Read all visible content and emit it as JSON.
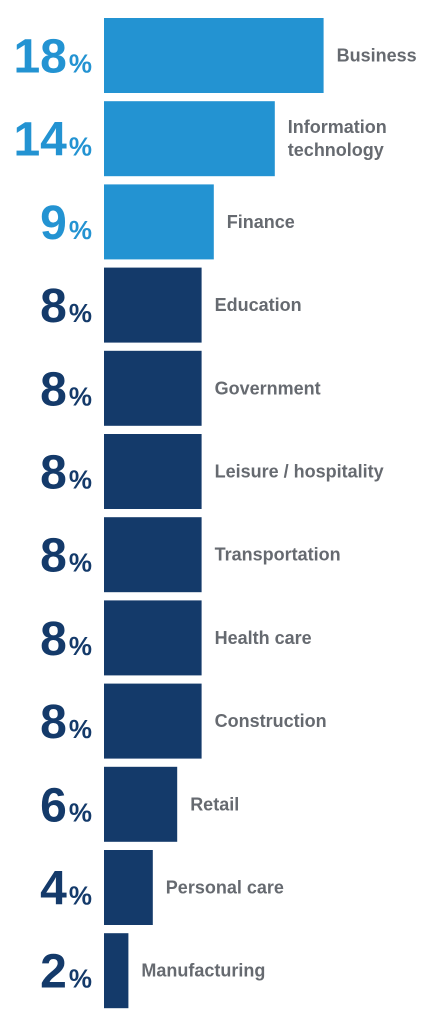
{
  "chart_data": {
    "type": "bar",
    "orientation": "horizontal",
    "categories": [
      "Business",
      "Information technology",
      "Finance",
      "Education",
      "Government",
      "Leisure / hospitality",
      "Transportation",
      "Health care",
      "Construction",
      "Retail",
      "Personal care",
      "Manufacturing"
    ],
    "category_lines": [
      [
        "Business"
      ],
      [
        "Information",
        "technology"
      ],
      [
        "Finance"
      ],
      [
        "Education"
      ],
      [
        "Government"
      ],
      [
        "Leisure / hospitality"
      ],
      [
        "Transportation"
      ],
      [
        "Health care"
      ],
      [
        "Construction"
      ],
      [
        "Retail"
      ],
      [
        "Personal care"
      ],
      [
        "Manufacturing"
      ]
    ],
    "values": [
      18,
      14,
      9,
      8,
      8,
      8,
      8,
      8,
      8,
      6,
      4,
      2
    ],
    "value_suffix": "%",
    "highlight_top": 3,
    "colors": {
      "highlight": "#2393d2",
      "default": "#143a6a",
      "label": "#666a70"
    },
    "title": "",
    "xlabel": "",
    "ylabel": "",
    "grid": false,
    "legend": "none"
  }
}
